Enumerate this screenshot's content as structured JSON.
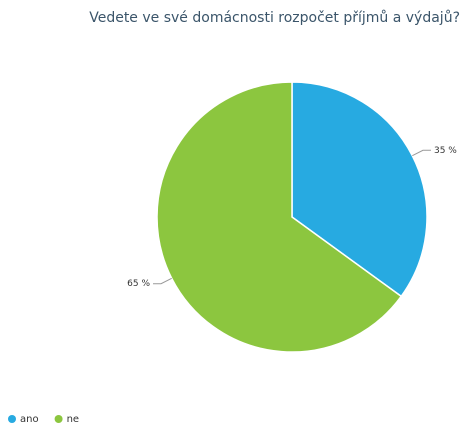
{
  "chart_data": {
    "type": "pie",
    "title": "Vedete ve své domácnosti rozpočet příjmů a výdajů?",
    "categories": [
      "ano",
      "ne"
    ],
    "values": [
      35,
      65
    ],
    "value_labels": [
      "35 %",
      "65 %"
    ],
    "colors": [
      "#27aae1",
      "#8cc63f"
    ],
    "legend": "bottom-left"
  }
}
